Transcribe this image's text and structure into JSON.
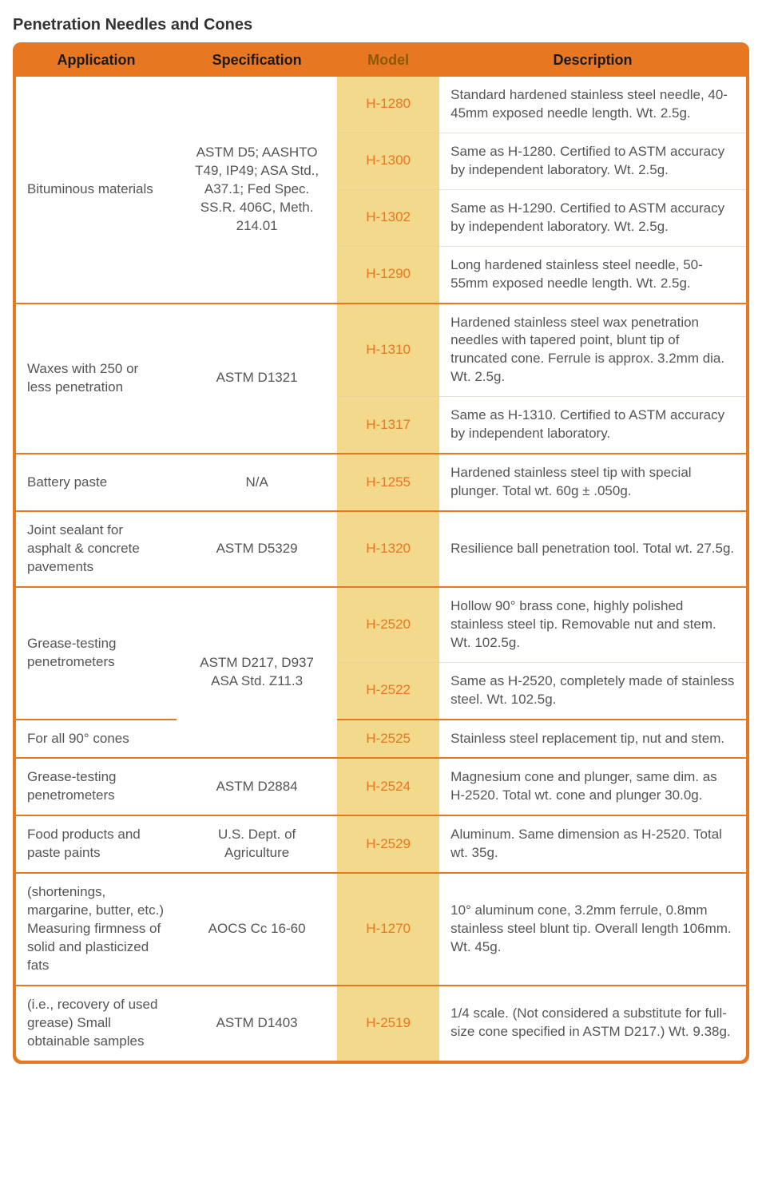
{
  "title": "Penetration Needles and Cones",
  "colors": {
    "accent": "#e87722",
    "modelBg": "#f2d98c",
    "modelText": "#e87722",
    "text": "#555555",
    "titleText": "#333333",
    "headerText": "#1a1a1a",
    "headerModelText": "#8b5a00",
    "rowDivider": "#e6e1d8"
  },
  "headers": {
    "application": "Application",
    "specification": "Specification",
    "model": "Model",
    "description": "Description"
  },
  "groups": [
    {
      "application": "Bituminous materials",
      "specification": "ASTM D5; AASHTO T49, IP49; ASA Std., A37.1; Fed Spec. SS.R. 406C, Meth. 214.01",
      "rows": [
        {
          "model": "H-1280",
          "description": "Standard hardened stainless steel needle, 40-45mm exposed needle length.  Wt. 2.5g."
        },
        {
          "model": "H-1300",
          "description": "Same as H-1280. Certified to ASTM accuracy by independent laboratory. Wt. 2.5g."
        },
        {
          "model": "H-1302",
          "description": "Same as H-1290. Certified to ASTM accuracy by independent laboratory. Wt. 2.5g."
        },
        {
          "model": "H-1290",
          "description": "Long hardened stainless steel needle, 50-55mm exposed needle length. Wt. 2.5g."
        }
      ]
    },
    {
      "application": "Waxes with 250 or less penetration",
      "specification": "ASTM D1321",
      "rows": [
        {
          "model": "H-1310",
          "description": "Hardened stainless steel wax penetration needles with tapered point, blunt tip of truncated cone. Ferrule is approx. 3.2mm dia. Wt. 2.5g."
        },
        {
          "model": "H-1317",
          "description": "Same as H-1310. Certified to ASTM accuracy by independent laboratory."
        }
      ]
    },
    {
      "application": "Battery paste",
      "specification": "N/A",
      "rows": [
        {
          "model": "H-1255",
          "description": "Hardened stainless steel tip with special plunger. Total wt. 60g ± .050g."
        }
      ]
    },
    {
      "application": "Joint sealant for asphalt & concrete pavements",
      "specification": "ASTM D5329",
      "rows": [
        {
          "model": "H-1320",
          "description": "Resilience ball penetration tool. Total wt. 27.5g."
        }
      ]
    },
    {
      "applicationRows": [
        "Grease-testing penetrometers",
        "For all 90° cones"
      ],
      "applicationSpans": [
        2,
        1
      ],
      "specification": "ASTM D217, D937 ASA Std. Z11.3",
      "rows": [
        {
          "model": "H-2520",
          "description": "Hollow 90° brass cone, highly polished stainless steel tip. Removable nut and stem. Wt. 102.5g."
        },
        {
          "model": "H-2522",
          "description": "Same as H-2520, completely made of stainless steel. Wt. 102.5g."
        },
        {
          "model": "H-2525",
          "description": "Stainless steel replacement tip, nut and stem."
        }
      ]
    },
    {
      "application": "Grease-testing penetrometers",
      "specification": "ASTM D2884",
      "rows": [
        {
          "model": "H-2524",
          "description": "Magnesium cone and plunger, same dim. as H-2520. Total wt. cone and plunger 30.0g."
        }
      ]
    },
    {
      "application": "Food products and paste paints",
      "specification": "U.S. Dept. of Agriculture",
      "rows": [
        {
          "model": "H-2529",
          "description": "Aluminum. Same dimension as H-2520. Total wt. 35g."
        }
      ]
    },
    {
      "application": "(shortenings, margarine, butter, etc.) Measuring firmness of solid and plasticized fats",
      "specification": "AOCS Cc 16-60",
      "rows": [
        {
          "model": "H-1270",
          "description": "10° aluminum cone, 3.2mm ferrule, 0.8mm stainless steel blunt tip. Overall length 106mm. Wt. 45g."
        }
      ]
    },
    {
      "application": "(i.e., recovery of used grease) Small obtainable samples",
      "specification": "ASTM D1403",
      "rows": [
        {
          "model": "H-2519",
          "description": "1/4 scale. (Not considered a substitute for full-size cone specified in ASTM D217.) Wt. 9.38g."
        }
      ]
    }
  ]
}
